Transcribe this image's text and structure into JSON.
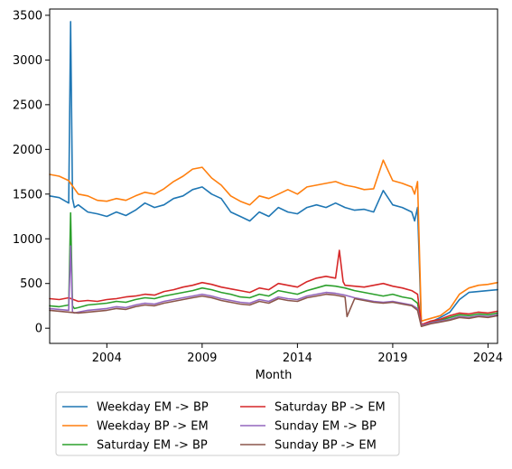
{
  "chart_data": {
    "type": "line",
    "xlabel": "Month",
    "ylabel": "",
    "title": "",
    "xlim": [
      2001.0,
      2024.5
    ],
    "ylim": [
      -170,
      3570
    ],
    "x_ticks": [
      2004,
      2009,
      2014,
      2019,
      2024
    ],
    "x_tick_labels": [
      "2004",
      "2009",
      "2014",
      "2019",
      "2024"
    ],
    "y_ticks": [
      0,
      500,
      1000,
      1500,
      2000,
      2500,
      3000,
      3500
    ],
    "y_tick_labels": [
      "0",
      "500",
      "1000",
      "1500",
      "2000",
      "2500",
      "3000",
      "3500"
    ],
    "grid": false,
    "legend_placement": "below plot, two columns",
    "series": [
      {
        "name": "Weekday EM -> BP",
        "color": "#1f77b4",
        "x": [
          2001.0,
          2001.5,
          2002.0,
          2002.1,
          2002.2,
          2002.3,
          2002.5,
          2003.0,
          2003.5,
          2004.0,
          2004.5,
          2005.0,
          2005.5,
          2006.0,
          2006.5,
          2007.0,
          2007.5,
          2008.0,
          2008.5,
          2009.0,
          2009.5,
          2010.0,
          2010.5,
          2011.0,
          2011.5,
          2012.0,
          2012.5,
          2013.0,
          2013.5,
          2014.0,
          2014.5,
          2015.0,
          2015.5,
          2016.0,
          2016.5,
          2017.0,
          2017.5,
          2018.0,
          2018.5,
          2019.0,
          2019.5,
          2020.0,
          2020.15,
          2020.3,
          2020.5,
          2021.0,
          2021.5,
          2022.0,
          2022.5,
          2023.0,
          2023.5,
          2024.0,
          2024.5
        ],
        "values": [
          1480,
          1460,
          1400,
          3430,
          1450,
          1350,
          1380,
          1300,
          1280,
          1250,
          1300,
          1260,
          1320,
          1400,
          1350,
          1380,
          1450,
          1480,
          1550,
          1580,
          1500,
          1450,
          1300,
          1250,
          1200,
          1300,
          1250,
          1350,
          1300,
          1280,
          1350,
          1380,
          1350,
          1400,
          1350,
          1320,
          1330,
          1300,
          1540,
          1380,
          1350,
          1300,
          1200,
          1350,
          30,
          70,
          120,
          180,
          320,
          400,
          410,
          420,
          430
        ]
      },
      {
        "name": "Weekday BP -> EM",
        "color": "#ff7f0e",
        "x": [
          2001.0,
          2001.5,
          2002.0,
          2002.5,
          2003.0,
          2003.5,
          2004.0,
          2004.5,
          2005.0,
          2005.5,
          2006.0,
          2006.5,
          2007.0,
          2007.5,
          2008.0,
          2008.5,
          2009.0,
          2009.5,
          2010.0,
          2010.5,
          2011.0,
          2011.5,
          2012.0,
          2012.5,
          2013.0,
          2013.5,
          2014.0,
          2014.5,
          2015.0,
          2015.5,
          2016.0,
          2016.5,
          2017.0,
          2017.5,
          2018.0,
          2018.5,
          2019.0,
          2019.5,
          2020.0,
          2020.15,
          2020.3,
          2020.5,
          2021.0,
          2021.5,
          2022.0,
          2022.5,
          2023.0,
          2023.5,
          2024.0,
          2024.5
        ],
        "values": [
          1720,
          1700,
          1650,
          1500,
          1480,
          1430,
          1420,
          1450,
          1430,
          1480,
          1520,
          1500,
          1560,
          1640,
          1700,
          1780,
          1800,
          1680,
          1600,
          1480,
          1420,
          1380,
          1480,
          1450,
          1500,
          1550,
          1500,
          1580,
          1600,
          1620,
          1640,
          1600,
          1580,
          1550,
          1560,
          1880,
          1650,
          1620,
          1580,
          1500,
          1640,
          80,
          110,
          140,
          220,
          380,
          450,
          480,
          490,
          510
        ]
      },
      {
        "name": "Saturday EM -> BP",
        "color": "#2ca02c",
        "x": [
          2001.0,
          2001.5,
          2002.0,
          2002.1,
          2002.2,
          2002.3,
          2002.5,
          2003.0,
          2003.5,
          2004.0,
          2004.5,
          2005.0,
          2005.5,
          2006.0,
          2006.5,
          2007.0,
          2007.5,
          2008.0,
          2008.5,
          2009.0,
          2009.5,
          2010.0,
          2010.5,
          2011.0,
          2011.5,
          2012.0,
          2012.5,
          2013.0,
          2013.5,
          2014.0,
          2014.5,
          2015.0,
          2015.5,
          2016.0,
          2016.5,
          2017.0,
          2017.5,
          2018.0,
          2018.5,
          2019.0,
          2019.5,
          2020.0,
          2020.3,
          2020.5,
          2021.0,
          2021.5,
          2022.0,
          2022.5,
          2023.0,
          2023.5,
          2024.0,
          2024.5
        ],
        "values": [
          250,
          240,
          260,
          1290,
          250,
          220,
          230,
          260,
          270,
          280,
          300,
          290,
          320,
          340,
          330,
          360,
          380,
          400,
          420,
          450,
          430,
          400,
          380,
          350,
          340,
          380,
          360,
          420,
          400,
          380,
          420,
          450,
          480,
          470,
          450,
          420,
          400,
          380,
          360,
          380,
          350,
          330,
          280,
          40,
          70,
          90,
          120,
          150,
          140,
          160,
          150,
          170
        ]
      },
      {
        "name": "Saturday BP -> EM",
        "color": "#d62728",
        "x": [
          2001.0,
          2001.5,
          2002.0,
          2002.5,
          2003.0,
          2003.5,
          2004.0,
          2004.5,
          2005.0,
          2005.5,
          2006.0,
          2006.5,
          2007.0,
          2007.5,
          2008.0,
          2008.5,
          2009.0,
          2009.5,
          2010.0,
          2010.5,
          2011.0,
          2011.5,
          2012.0,
          2012.5,
          2013.0,
          2013.5,
          2014.0,
          2014.5,
          2015.0,
          2015.5,
          2016.0,
          2016.2,
          2016.4,
          2016.5,
          2017.0,
          2017.5,
          2018.0,
          2018.5,
          2019.0,
          2019.5,
          2020.0,
          2020.3,
          2020.5,
          2021.0,
          2021.5,
          2022.0,
          2022.5,
          2023.0,
          2023.5,
          2024.0,
          2024.5
        ],
        "values": [
          330,
          320,
          340,
          300,
          310,
          300,
          320,
          330,
          350,
          360,
          380,
          370,
          410,
          430,
          460,
          480,
          510,
          490,
          460,
          440,
          420,
          400,
          450,
          430,
          500,
          480,
          460,
          520,
          560,
          580,
          560,
          870,
          520,
          480,
          470,
          460,
          480,
          500,
          470,
          450,
          420,
          380,
          40,
          80,
          100,
          140,
          170,
          160,
          180,
          170,
          190
        ]
      },
      {
        "name": "Sunday EM -> BP",
        "color": "#9467bd",
        "x": [
          2001.0,
          2001.5,
          2002.0,
          2002.1,
          2002.2,
          2002.3,
          2002.5,
          2003.0,
          2003.5,
          2004.0,
          2004.5,
          2005.0,
          2005.5,
          2006.0,
          2006.5,
          2007.0,
          2007.5,
          2008.0,
          2008.5,
          2009.0,
          2009.5,
          2010.0,
          2010.5,
          2011.0,
          2011.5,
          2012.0,
          2012.5,
          2013.0,
          2013.5,
          2014.0,
          2014.5,
          2015.0,
          2015.5,
          2016.0,
          2016.5,
          2017.0,
          2017.5,
          2018.0,
          2018.5,
          2019.0,
          2019.5,
          2020.0,
          2020.3,
          2020.5,
          2021.0,
          2021.5,
          2022.0,
          2022.5,
          2023.0,
          2023.5,
          2024.0,
          2024.5
        ],
        "values": [
          220,
          210,
          200,
          920,
          180,
          170,
          180,
          200,
          210,
          220,
          240,
          230,
          260,
          280,
          270,
          300,
          320,
          340,
          360,
          380,
          360,
          330,
          310,
          290,
          280,
          320,
          300,
          350,
          330,
          320,
          360,
          380,
          400,
          390,
          370,
          340,
          320,
          300,
          290,
          300,
          280,
          260,
          220,
          30,
          60,
          80,
          100,
          130,
          120,
          140,
          130,
          150
        ]
      },
      {
        "name": "Sunday BP -> EM",
        "color": "#8c564b",
        "x": [
          2001.0,
          2001.5,
          2002.0,
          2002.5,
          2003.0,
          2003.5,
          2004.0,
          2004.5,
          2005.0,
          2005.5,
          2006.0,
          2006.5,
          2007.0,
          2007.5,
          2008.0,
          2008.5,
          2009.0,
          2009.5,
          2010.0,
          2010.5,
          2011.0,
          2011.5,
          2012.0,
          2012.5,
          2013.0,
          2013.5,
          2014.0,
          2014.5,
          2015.0,
          2015.5,
          2016.0,
          2016.5,
          2016.6,
          2017.0,
          2017.5,
          2018.0,
          2018.5,
          2019.0,
          2019.5,
          2020.0,
          2020.3,
          2020.5,
          2021.0,
          2021.5,
          2022.0,
          2022.5,
          2023.0,
          2023.5,
          2024.0,
          2024.5
        ],
        "values": [
          200,
          190,
          180,
          170,
          180,
          190,
          200,
          220,
          210,
          240,
          260,
          250,
          280,
          300,
          320,
          340,
          360,
          340,
          310,
          290,
          270,
          260,
          300,
          280,
          330,
          310,
          300,
          340,
          360,
          380,
          370,
          350,
          130,
          330,
          310,
          290,
          280,
          290,
          270,
          250,
          200,
          20,
          50,
          70,
          90,
          120,
          110,
          130,
          120,
          140
        ]
      }
    ]
  }
}
